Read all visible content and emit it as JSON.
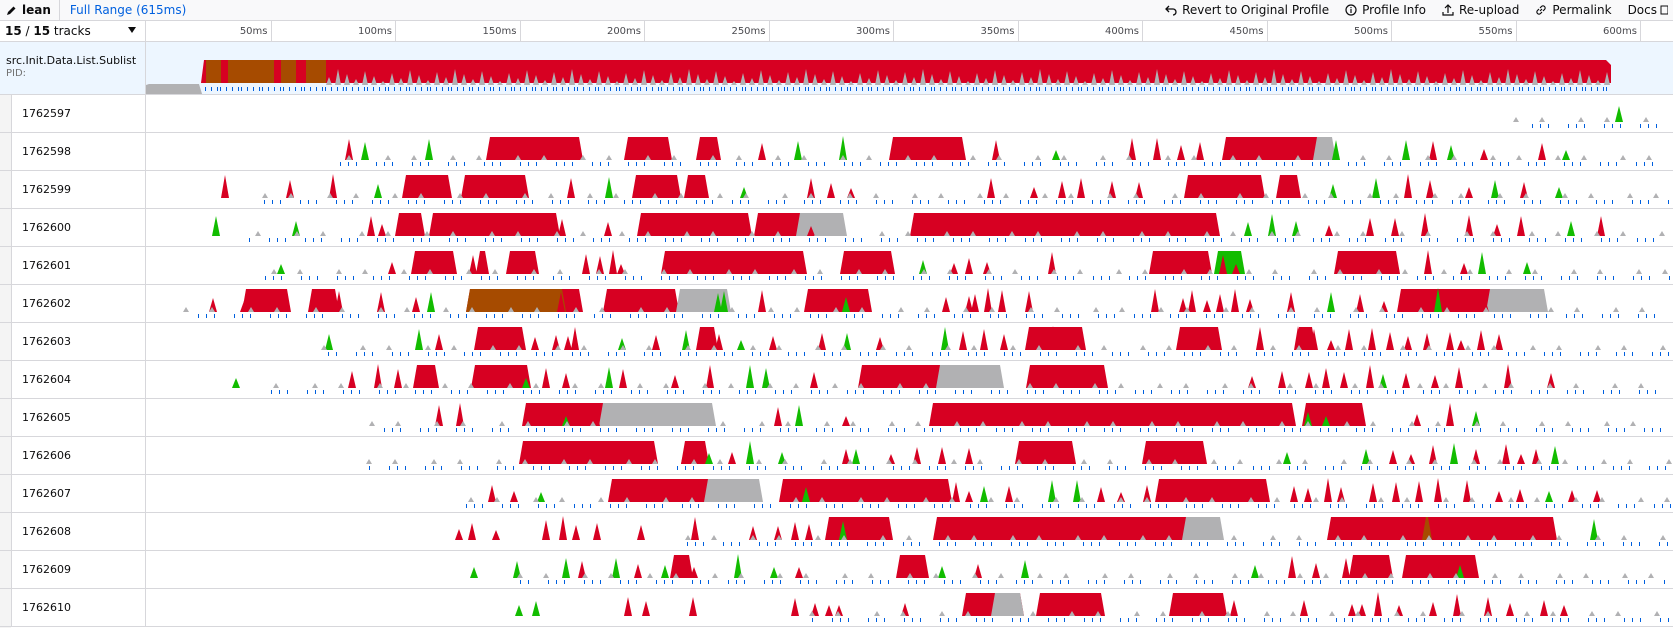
{
  "topbar": {
    "app_name": "lean",
    "range_label": "Full Range (615ms)",
    "buttons": {
      "revert": "Revert to Original Profile",
      "profile_info": "Profile Info",
      "reupload": "Re-upload",
      "permalink": "Permalink",
      "docs": "Docs"
    }
  },
  "tracks_header": {
    "visible": "15",
    "total": "15",
    "suffix": "tracks"
  },
  "ruler": {
    "ticks": [
      "50ms",
      "100ms",
      "150ms",
      "200ms",
      "250ms",
      "300ms",
      "350ms",
      "400ms",
      "450ms",
      "500ms",
      "550ms",
      "600ms"
    ]
  },
  "process": {
    "name": "src.Init.Data.List.Sublist",
    "pid_label": "PID:"
  },
  "threads": [
    "1762597",
    "1762598",
    "1762599",
    "1762600",
    "1762601",
    "1762602",
    "1762603",
    "1762604",
    "1762605",
    "1762606",
    "1762607",
    "1762608",
    "1762609",
    "1762610"
  ],
  "colors": {
    "cpu_red": "#d70022",
    "idle_gray": "#b1b1b3",
    "gc_green": "#12bc00",
    "brown": "#a64b00",
    "marker_blue": "#0060df",
    "link_blue": "#0060df"
  },
  "blocks": [
    [],
    [
      [
        340,
        437
      ],
      [
        478,
        526
      ],
      [
        550,
        575
      ],
      [
        743,
        820
      ],
      [
        1076,
        1177
      ]
    ],
    [
      [
        256,
        306
      ],
      [
        315,
        383
      ],
      [
        486,
        535
      ],
      [
        538,
        563
      ],
      [
        1038,
        1119
      ],
      [
        1130,
        1155
      ]
    ],
    [
      [
        249,
        279
      ],
      [
        283,
        414
      ],
      [
        491,
        606
      ],
      [
        608,
        660
      ],
      [
        764,
        1074
      ]
    ],
    [
      [
        265,
        311
      ],
      [
        330,
        343
      ],
      [
        360,
        393
      ],
      [
        515,
        661
      ],
      [
        694,
        749
      ],
      [
        1003,
        1066
      ],
      [
        1188,
        1254
      ]
    ],
    [
      [
        96,
        145
      ],
      [
        162,
        193
      ],
      [
        320,
        437
      ],
      [
        457,
        533
      ],
      [
        658,
        726
      ],
      [
        1251,
        1393
      ]
    ],
    [
      [
        328,
        380
      ],
      [
        550,
        572
      ],
      [
        879,
        940
      ],
      [
        1030,
        1076
      ],
      [
        1149,
        1170
      ]
    ],
    [
      [
        267,
        293
      ],
      [
        325,
        385
      ],
      [
        712,
        856
      ],
      [
        880,
        962
      ]
    ],
    [
      [
        376,
        532
      ],
      [
        783,
        1150
      ],
      [
        1156,
        1220
      ]
    ],
    [
      [
        373,
        512
      ],
      [
        535,
        563
      ],
      [
        869,
        930
      ],
      [
        996,
        1061
      ]
    ],
    [
      [
        462,
        608
      ],
      [
        633,
        806
      ],
      [
        1009,
        1124
      ]
    ],
    [
      [
        679,
        747
      ],
      [
        787,
        1044
      ],
      [
        1181,
        1411
      ]
    ],
    [
      [
        524,
        547
      ],
      [
        750,
        783
      ],
      [
        1203,
        1247
      ],
      [
        1256,
        1333
      ]
    ],
    [
      [
        816,
        878
      ],
      [
        890,
        959
      ],
      [
        1023,
        1081
      ]
    ]
  ],
  "gray_blocks": [
    [],
    [
      [
        1167,
        1190
      ]
    ],
    [],
    [
      [
        650,
        701
      ]
    ],
    [],
    [
      [
        530,
        585
      ],
      [
        1340,
        1402
      ]
    ],
    [],
    [
      [
        790,
        858
      ]
    ],
    [
      [
        453,
        570
      ]
    ],
    [],
    [
      [
        558,
        617
      ]
    ],
    [
      [
        1036,
        1078
      ]
    ],
    [],
    [
      [
        845,
        878
      ]
    ]
  ],
  "green_blocks": [
    [],
    [],
    [],
    [],
    [
      [
        1068,
        1099
      ]
    ],
    [],
    [],
    [],
    [],
    [],
    [],
    [],
    [],
    []
  ],
  "brown_blocks": [
    [],
    [],
    [],
    [],
    [],
    [
      [
        320,
        420
      ]
    ],
    [],
    [],
    [],
    [],
    [],
    [
      [
        1276,
        1286
      ]
    ],
    [],
    []
  ],
  "spikes": [
    [
      [
        1473,
        "g"
      ]
    ],
    [
      [
        203,
        "r"
      ],
      [
        219,
        "g"
      ],
      [
        283,
        "g"
      ],
      [
        616,
        "r"
      ],
      [
        652,
        "g"
      ],
      [
        697,
        "g"
      ],
      [
        850,
        "r"
      ],
      [
        910,
        "g"
      ],
      [
        986,
        "r"
      ],
      [
        1011,
        "r"
      ],
      [
        1035,
        "r"
      ],
      [
        1054,
        "r"
      ],
      [
        1107,
        "r"
      ],
      [
        1190,
        "g"
      ],
      [
        1260,
        "g"
      ],
      [
        1287,
        "r"
      ],
      [
        1305,
        "g"
      ],
      [
        1338,
        "r"
      ],
      [
        1396,
        "r"
      ],
      [
        1420,
        "g"
      ]
    ],
    [
      [
        79,
        "r"
      ],
      [
        144,
        "r"
      ],
      [
        187,
        "r"
      ],
      [
        232,
        "g"
      ],
      [
        425,
        "r"
      ],
      [
        463,
        "g"
      ],
      [
        598,
        "g"
      ],
      [
        665,
        "r"
      ],
      [
        685,
        "r"
      ],
      [
        705,
        "r"
      ],
      [
        845,
        "r"
      ],
      [
        888,
        "r"
      ],
      [
        916,
        "r"
      ],
      [
        935,
        "r"
      ],
      [
        966,
        "r"
      ],
      [
        993,
        "r"
      ],
      [
        1187,
        "g"
      ],
      [
        1230,
        "g"
      ],
      [
        1262,
        "r"
      ],
      [
        1284,
        "r"
      ],
      [
        1323,
        "r"
      ],
      [
        1349,
        "g"
      ],
      [
        1378,
        "r"
      ],
      [
        1413,
        "g"
      ]
    ],
    [
      [
        70,
        "g"
      ],
      [
        150,
        "g"
      ],
      [
        225,
        "r"
      ],
      [
        236,
        "r"
      ],
      [
        416,
        "r"
      ],
      [
        462,
        "r"
      ],
      [
        525,
        "r"
      ],
      [
        546,
        "r"
      ],
      [
        665,
        "r"
      ],
      [
        1102,
        "g"
      ],
      [
        1126,
        "g"
      ],
      [
        1150,
        "g"
      ],
      [
        1183,
        "r"
      ],
      [
        1224,
        "r"
      ],
      [
        1249,
        "r"
      ],
      [
        1279,
        "r"
      ],
      [
        1323,
        "r"
      ],
      [
        1351,
        "r"
      ],
      [
        1375,
        "r"
      ],
      [
        1425,
        "g"
      ],
      [
        1455,
        "r"
      ]
    ],
    [
      [
        135,
        "g"
      ],
      [
        246,
        "r"
      ],
      [
        305,
        "r"
      ],
      [
        327,
        "r"
      ],
      [
        440,
        "r"
      ],
      [
        454,
        "r"
      ],
      [
        467,
        "r"
      ],
      [
        475,
        "r"
      ],
      [
        626,
        "r"
      ],
      [
        641,
        "r"
      ],
      [
        655,
        "r"
      ],
      [
        777,
        "g"
      ],
      [
        808,
        "r"
      ],
      [
        823,
        "r"
      ],
      [
        841,
        "r"
      ],
      [
        906,
        "r"
      ],
      [
        1008,
        "r"
      ],
      [
        1035,
        "r"
      ],
      [
        1077,
        "r"
      ],
      [
        1090,
        "r"
      ],
      [
        1282,
        "r"
      ],
      [
        1318,
        "r"
      ],
      [
        1336,
        "g"
      ],
      [
        1381,
        "g"
      ]
    ],
    [
      [
        67,
        "r"
      ],
      [
        98,
        "r"
      ],
      [
        193,
        "r"
      ],
      [
        235,
        "r"
      ],
      [
        270,
        "r"
      ],
      [
        285,
        "g"
      ],
      [
        415,
        "r"
      ],
      [
        429,
        "r"
      ],
      [
        572,
        "g"
      ],
      [
        578,
        "g"
      ],
      [
        616,
        "r"
      ],
      [
        700,
        "g"
      ],
      [
        800,
        "r"
      ],
      [
        823,
        "r"
      ],
      [
        829,
        "r"
      ],
      [
        842,
        "r"
      ],
      [
        856,
        "r"
      ],
      [
        883,
        "r"
      ],
      [
        1009,
        "r"
      ],
      [
        1037,
        "r"
      ],
      [
        1046,
        "r"
      ],
      [
        1061,
        "r"
      ],
      [
        1074,
        "r"
      ],
      [
        1089,
        "r"
      ],
      [
        1104,
        "r"
      ],
      [
        1145,
        "r"
      ],
      [
        1185,
        "g"
      ],
      [
        1214,
        "r"
      ],
      [
        1238,
        "r"
      ],
      [
        1260,
        "r"
      ],
      [
        1292,
        "g"
      ],
      [
        1339,
        "r"
      ]
    ],
    [
      [
        183,
        "g"
      ],
      [
        273,
        "g"
      ],
      [
        293,
        "r"
      ],
      [
        339,
        "r"
      ],
      [
        356,
        "r"
      ],
      [
        389,
        "r"
      ],
      [
        410,
        "r"
      ],
      [
        422,
        "r"
      ],
      [
        429,
        "r"
      ],
      [
        476,
        "g"
      ],
      [
        510,
        "r"
      ],
      [
        540,
        "g"
      ],
      [
        573,
        "r"
      ],
      [
        595,
        "g"
      ],
      [
        627,
        "r"
      ],
      [
        676,
        "r"
      ],
      [
        701,
        "g"
      ],
      [
        734,
        "r"
      ],
      [
        799,
        "g"
      ],
      [
        817,
        "r"
      ],
      [
        838,
        "r"
      ],
      [
        858,
        "r"
      ],
      [
        885,
        "r"
      ],
      [
        907,
        "r"
      ],
      [
        1114,
        "r"
      ],
      [
        1152,
        "r"
      ],
      [
        1168,
        "r"
      ],
      [
        1185,
        "r"
      ],
      [
        1203,
        "r"
      ],
      [
        1226,
        "r"
      ],
      [
        1244,
        "r"
      ],
      [
        1262,
        "r"
      ],
      [
        1281,
        "r"
      ],
      [
        1304,
        "r"
      ],
      [
        1315,
        "r"
      ],
      [
        1335,
        "r"
      ],
      [
        1353,
        "r"
      ]
    ],
    [
      [
        90,
        "g"
      ],
      [
        206,
        "r"
      ],
      [
        232,
        "r"
      ],
      [
        252,
        "r"
      ],
      [
        358,
        "r"
      ],
      [
        380,
        "g"
      ],
      [
        400,
        "r"
      ],
      [
        420,
        "r"
      ],
      [
        463,
        "g"
      ],
      [
        477,
        "r"
      ],
      [
        529,
        "r"
      ],
      [
        564,
        "r"
      ],
      [
        604,
        "g"
      ],
      [
        620,
        "g"
      ],
      [
        668,
        "r"
      ],
      [
        1106,
        "r"
      ],
      [
        1136,
        "r"
      ],
      [
        1163,
        "r"
      ],
      [
        1180,
        "r"
      ],
      [
        1198,
        "r"
      ],
      [
        1224,
        "r"
      ],
      [
        1237,
        "g"
      ],
      [
        1260,
        "r"
      ],
      [
        1289,
        "r"
      ],
      [
        1313,
        "r"
      ],
      [
        1362,
        "r"
      ],
      [
        1405,
        "r"
      ]
    ],
    [
      [
        293,
        "r"
      ],
      [
        314,
        "r"
      ],
      [
        384,
        "r"
      ],
      [
        420,
        "g"
      ],
      [
        450,
        "r"
      ],
      [
        632,
        "r"
      ],
      [
        653,
        "g"
      ],
      [
        700,
        "r"
      ],
      [
        1142,
        "r"
      ],
      [
        1162,
        "g"
      ],
      [
        1180,
        "g"
      ],
      [
        1195,
        "r"
      ],
      [
        1271,
        "r"
      ],
      [
        1304,
        "r"
      ],
      [
        1330,
        "g"
      ]
    ],
    [
      [
        539,
        "r"
      ],
      [
        563,
        "g"
      ],
      [
        586,
        "r"
      ],
      [
        604,
        "g"
      ],
      [
        636,
        "g"
      ],
      [
        700,
        "r"
      ],
      [
        710,
        "g"
      ],
      [
        745,
        "r"
      ],
      [
        771,
        "r"
      ],
      [
        796,
        "r"
      ],
      [
        823,
        "r"
      ],
      [
        1141,
        "g"
      ],
      [
        1220,
        "g"
      ],
      [
        1247,
        "r"
      ],
      [
        1265,
        "r"
      ],
      [
        1287,
        "r"
      ],
      [
        1308,
        "g"
      ],
      [
        1330,
        "r"
      ],
      [
        1360,
        "r"
      ],
      [
        1375,
        "r"
      ],
      [
        1390,
        "r"
      ],
      [
        1409,
        "g"
      ]
    ],
    [
      [
        346,
        "r"
      ],
      [
        368,
        "r"
      ],
      [
        395,
        "g"
      ],
      [
        646,
        "r"
      ],
      [
        660,
        "g"
      ],
      [
        810,
        "r"
      ],
      [
        823,
        "r"
      ],
      [
        838,
        "g"
      ],
      [
        863,
        "r"
      ],
      [
        906,
        "g"
      ],
      [
        931,
        "g"
      ],
      [
        955,
        "r"
      ],
      [
        975,
        "r"
      ],
      [
        1001,
        "r"
      ],
      [
        1148,
        "r"
      ],
      [
        1162,
        "r"
      ],
      [
        1182,
        "r"
      ],
      [
        1195,
        "r"
      ],
      [
        1227,
        "r"
      ],
      [
        1250,
        "r"
      ],
      [
        1273,
        "r"
      ],
      [
        1292,
        "r"
      ],
      [
        1321,
        "r"
      ],
      [
        1353,
        "r"
      ],
      [
        1374,
        "r"
      ],
      [
        1403,
        "g"
      ],
      [
        1426,
        "r"
      ],
      [
        1451,
        "r"
      ]
    ],
    [
      [
        313,
        "r"
      ],
      [
        326,
        "r"
      ],
      [
        350,
        "r"
      ],
      [
        400,
        "r"
      ],
      [
        417,
        "r"
      ],
      [
        430,
        "r"
      ],
      [
        451,
        "r"
      ],
      [
        495,
        "r"
      ],
      [
        549,
        "r"
      ],
      [
        607,
        "r"
      ],
      [
        632,
        "r"
      ],
      [
        649,
        "r"
      ],
      [
        663,
        "r"
      ],
      [
        697,
        "g"
      ],
      [
        718,
        "r"
      ],
      [
        1448,
        "g"
      ]
    ],
    [
      [
        328,
        "g"
      ],
      [
        371,
        "g"
      ],
      [
        420,
        "g"
      ],
      [
        436,
        "r"
      ],
      [
        470,
        "g"
      ],
      [
        492,
        "r"
      ],
      [
        519,
        "g"
      ],
      [
        548,
        "r"
      ],
      [
        592,
        "g"
      ],
      [
        628,
        "g"
      ],
      [
        653,
        "r"
      ],
      [
        796,
        "g"
      ],
      [
        832,
        "r"
      ],
      [
        879,
        "g"
      ],
      [
        1109,
        "g"
      ],
      [
        1146,
        "r"
      ],
      [
        1170,
        "r"
      ],
      [
        1200,
        "r"
      ],
      [
        1218,
        "r"
      ],
      [
        1261,
        "r"
      ],
      [
        1294,
        "r"
      ],
      [
        1314,
        "g"
      ]
    ],
    [
      [
        373,
        "g"
      ],
      [
        390,
        "g"
      ],
      [
        482,
        "r"
      ],
      [
        500,
        "r"
      ],
      [
        547,
        "r"
      ],
      [
        649,
        "r"
      ],
      [
        669,
        "r"
      ],
      [
        683,
        "r"
      ],
      [
        693,
        "r"
      ],
      [
        759,
        "r"
      ],
      [
        1060,
        "r"
      ],
      [
        1088,
        "r"
      ],
      [
        1158,
        "r"
      ],
      [
        1206,
        "r"
      ],
      [
        1216,
        "r"
      ],
      [
        1232,
        "r"
      ],
      [
        1253,
        "r"
      ],
      [
        1287,
        "r"
      ],
      [
        1311,
        "r"
      ],
      [
        1342,
        "r"
      ],
      [
        1364,
        "r"
      ],
      [
        1398,
        "r"
      ],
      [
        1418,
        "r"
      ]
    ]
  ]
}
